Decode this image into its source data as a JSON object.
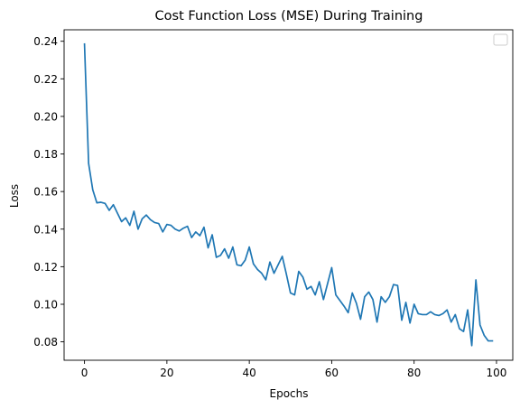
{
  "chart_data": {
    "type": "line",
    "title": "Cost Function Loss (MSE) During Training",
    "xlabel": "Epochs",
    "ylabel": "Loss",
    "xlim": [
      -4.95,
      103.95
    ],
    "ylim": [
      0.0702,
      0.2461
    ],
    "xticks": [
      0,
      20,
      40,
      60,
      80,
      100
    ],
    "xtick_labels": [
      "0",
      "20",
      "40",
      "60",
      "80",
      "100"
    ],
    "yticks": [
      0.08,
      0.1,
      0.12,
      0.14,
      0.16,
      0.18,
      0.2,
      0.22,
      0.24
    ],
    "ytick_labels": [
      "0.08",
      "0.10",
      "0.12",
      "0.14",
      "0.16",
      "0.18",
      "0.20",
      "0.22",
      "0.24"
    ],
    "grid": false,
    "legend": "upper right (empty)",
    "colors": {
      "line": "#1f77b4",
      "axes": "#000000",
      "legend_border": "#cccccc"
    },
    "series": [
      {
        "x": [
          0,
          1,
          2,
          3,
          4,
          5,
          6,
          7,
          8,
          9,
          10,
          11,
          12,
          13,
          14,
          15,
          16,
          17,
          18,
          19,
          20,
          21,
          22,
          23,
          24,
          25,
          26,
          27,
          28,
          29,
          30,
          31,
          32,
          33,
          34,
          35,
          36,
          37,
          38,
          39,
          40,
          41,
          42,
          43,
          44,
          45,
          46,
          47,
          48,
          49,
          50,
          51,
          52,
          53,
          54,
          55,
          56,
          57,
          58,
          59,
          60,
          61,
          62,
          63,
          64,
          65,
          66,
          67,
          68,
          69,
          70,
          71,
          72,
          73,
          74,
          75,
          76,
          77,
          78,
          79,
          80,
          81,
          82,
          83,
          84,
          85,
          86,
          87,
          88,
          89,
          90,
          91,
          92,
          93,
          94,
          95,
          96,
          97,
          98,
          99
        ],
        "values": [
          0.2385,
          0.175,
          0.161,
          0.154,
          0.1543,
          0.1537,
          0.15,
          0.153,
          0.1485,
          0.144,
          0.146,
          0.142,
          0.1495,
          0.14,
          0.1455,
          0.1475,
          0.145,
          0.1435,
          0.143,
          0.1385,
          0.1425,
          0.142,
          0.14,
          0.139,
          0.1405,
          0.1415,
          0.1355,
          0.1385,
          0.1365,
          0.141,
          0.13,
          0.137,
          0.125,
          0.126,
          0.1295,
          0.1245,
          0.1305,
          0.121,
          0.1205,
          0.1235,
          0.1305,
          0.1215,
          0.1185,
          0.1165,
          0.113,
          0.1225,
          0.1165,
          0.121,
          0.1255,
          0.116,
          0.106,
          0.105,
          0.1175,
          0.1145,
          0.108,
          0.1095,
          0.105,
          0.112,
          0.1025,
          0.111,
          0.1195,
          0.105,
          0.102,
          0.099,
          0.0955,
          0.106,
          0.1005,
          0.092,
          0.104,
          0.1065,
          0.1025,
          0.0905,
          0.104,
          0.101,
          0.104,
          0.1105,
          0.11,
          0.0915,
          0.101,
          0.09,
          0.1,
          0.095,
          0.0945,
          0.0945,
          0.096,
          0.0945,
          0.094,
          0.095,
          0.097,
          0.0905,
          0.0945,
          0.087,
          0.0855,
          0.097,
          0.078,
          0.113,
          0.089,
          0.0835,
          0.0805,
          0.0805
        ]
      }
    ]
  }
}
